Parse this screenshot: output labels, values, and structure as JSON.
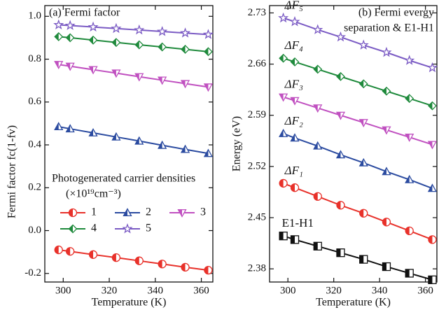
{
  "chart_data": [
    {
      "type": "line",
      "title": [
        "(a) Fermi factor"
      ],
      "x_label": "Temperature (K)",
      "y_label": "Fermi factor fc(1-fv)",
      "x": [
        298,
        303,
        313,
        323,
        333,
        343,
        353,
        363
      ],
      "xlim": [
        292,
        365
      ],
      "xticks": [
        300,
        320,
        340,
        360
      ],
      "ylim": [
        -0.24,
        1.05
      ],
      "yticks": [
        {
          "value": -0.2,
          "label": "-0.2"
        },
        {
          "value": 0,
          "label": "0.0"
        },
        0.2,
        0.4,
        0.6,
        0.8,
        {
          "value": 1,
          "label": "1.0"
        }
      ],
      "legend": "center left",
      "legend_title": [
        "Photogenerated carrier densities",
        "(×10¹⁹cm⁻³)"
      ],
      "series": [
        {
          "name": "1",
          "color": "#e8312a",
          "marker": "circle",
          "values": [
            -0.09,
            -0.097,
            -0.112,
            -0.126,
            -0.141,
            -0.156,
            -0.171,
            -0.185
          ]
        },
        {
          "name": "2",
          "color": "#2b4ba0",
          "marker": "triangle-up",
          "values": [
            0.485,
            0.475,
            0.456,
            0.437,
            0.418,
            0.398,
            0.379,
            0.36
          ]
        },
        {
          "name": "3",
          "color": "#c050c0",
          "marker": "triangle-down",
          "values": [
            0.775,
            0.767,
            0.751,
            0.735,
            0.718,
            0.702,
            0.686,
            0.67
          ]
        },
        {
          "name": "4",
          "color": "#1f8a3c",
          "marker": "diamond",
          "values": [
            0.905,
            0.9,
            0.889,
            0.878,
            0.867,
            0.857,
            0.846,
            0.835
          ]
        },
        {
          "name": "5",
          "color": "#7b5bc4",
          "marker": "star",
          "values": [
            0.96,
            0.957,
            0.95,
            0.943,
            0.936,
            0.929,
            0.922,
            0.915
          ]
        }
      ]
    },
    {
      "type": "line",
      "title": [
        "(b) Fermi evergy",
        "separation & E1-H1"
      ],
      "x_label": "Temperature (K)",
      "y_label": "Energy (eV)",
      "x": [
        298,
        303,
        313,
        323,
        333,
        343,
        353,
        363
      ],
      "xlim": [
        292,
        365
      ],
      "xticks": [
        300,
        320,
        340,
        360
      ],
      "ylim": [
        2.362,
        2.74
      ],
      "yticks": [
        2.38,
        2.45,
        2.52,
        2.59,
        2.66,
        2.73
      ],
      "legend": "inline",
      "series": [
        {
          "name": "E1-H1",
          "color": "#111111",
          "marker": "square",
          "values": [
            2.425,
            2.42,
            2.411,
            2.402,
            2.393,
            2.383,
            2.374,
            2.365
          ]
        },
        {
          "name": "ΔF₁",
          "color": "#e8312a",
          "marker": "circle",
          "values": [
            2.497,
            2.491,
            2.479,
            2.467,
            2.456,
            2.444,
            2.432,
            2.42
          ]
        },
        {
          "name": "ΔF₂",
          "color": "#2b4ba0",
          "marker": "triangle-up",
          "values": [
            2.565,
            2.559,
            2.548,
            2.536,
            2.525,
            2.513,
            2.502,
            2.49
          ]
        },
        {
          "name": "ΔF₃",
          "color": "#c050c0",
          "marker": "triangle-down",
          "values": [
            2.615,
            2.61,
            2.6,
            2.59,
            2.58,
            2.57,
            2.56,
            2.55
          ]
        },
        {
          "name": "ΔF₄",
          "color": "#1f8a3c",
          "marker": "diamond",
          "values": [
            2.668,
            2.663,
            2.653,
            2.643,
            2.633,
            2.623,
            2.613,
            2.603
          ]
        },
        {
          "name": "ΔF₅",
          "color": "#7b5bc4",
          "marker": "star",
          "values": [
            2.723,
            2.718,
            2.707,
            2.697,
            2.686,
            2.676,
            2.665,
            2.655
          ]
        }
      ]
    }
  ]
}
